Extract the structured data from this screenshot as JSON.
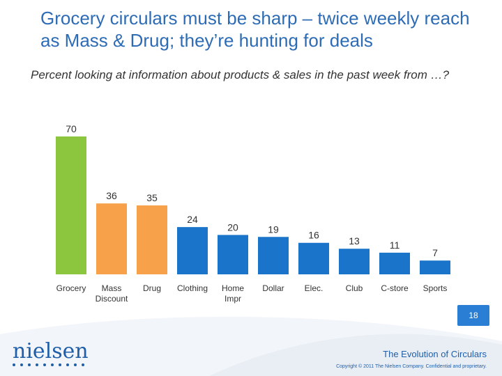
{
  "slide": {
    "title": "Grocery circulars must be sharp – twice weekly reach as Mass & Drug; they’re hunting for deals",
    "subtitle": "Percent looking at information about products & sales in the past week from …?",
    "page_number": "18",
    "footer_title": "The Evolution of Circulars",
    "copyright": "Copyright © 2011 The Nielsen Company. Confidential and proprietary.",
    "logo_text": "nielsen"
  },
  "colors": {
    "title": "#2d6cb5",
    "grocery": "#8cc63f",
    "mass_drug": "#f7a24a",
    "other": "#1a74c9",
    "footer_blue": "#1f5ea8"
  },
  "chart_data": {
    "type": "bar",
    "title": "",
    "xlabel": "",
    "ylabel": "",
    "ylim": [
      0,
      70
    ],
    "grid": false,
    "legend": "none",
    "categories": [
      "Grocery",
      "Mass Discount",
      "Drug",
      "Clothing",
      "Home Impr",
      "Dollar",
      "Elec.",
      "Club",
      "C-store",
      "Sports"
    ],
    "category_lines": [
      [
        "Grocery"
      ],
      [
        "Mass",
        "Discount"
      ],
      [
        "Drug"
      ],
      [
        "Clothing"
      ],
      [
        "Home",
        "Impr"
      ],
      [
        "Dollar"
      ],
      [
        "Elec."
      ],
      [
        "Club"
      ],
      [
        "C-store"
      ],
      [
        "Sports"
      ]
    ],
    "values": [
      70,
      36,
      35,
      24,
      20,
      19,
      16,
      13,
      11,
      7
    ],
    "bar_colors": [
      "#8cc63f",
      "#f7a24a",
      "#f7a24a",
      "#1a74c9",
      "#1a74c9",
      "#1a74c9",
      "#1a74c9",
      "#1a74c9",
      "#1a74c9",
      "#1a74c9"
    ]
  }
}
